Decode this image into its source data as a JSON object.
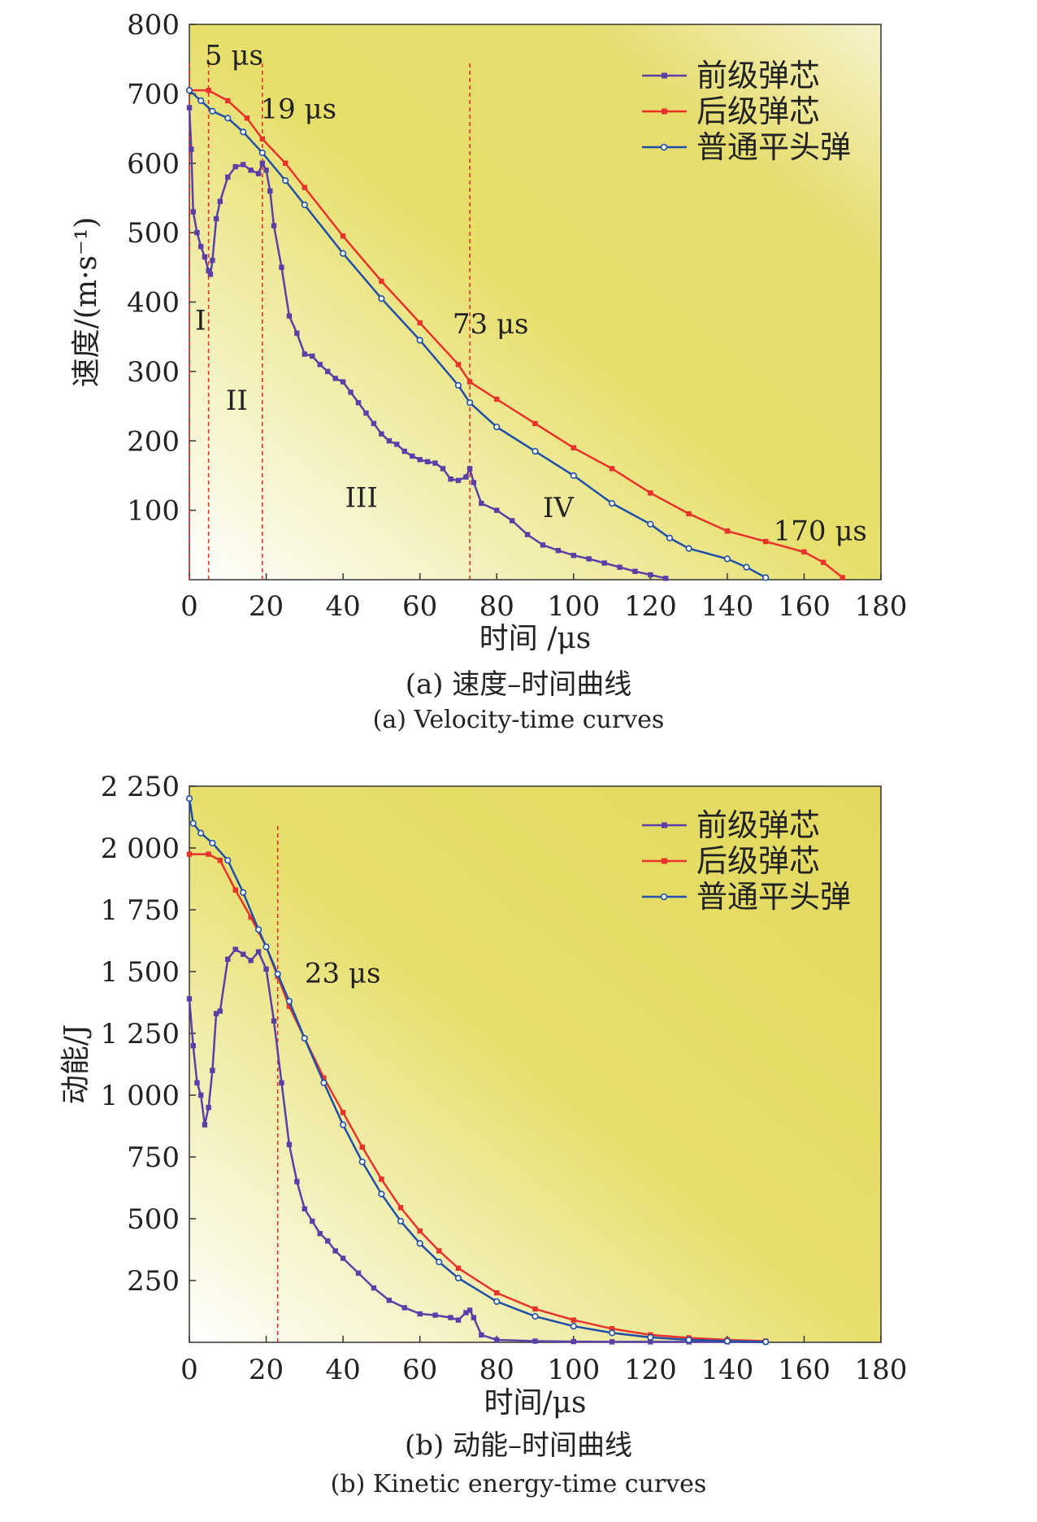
{
  "chart_data": [
    {
      "type": "line",
      "ylabel": "速度/(m·s⁻¹)",
      "xlabel": "时间 /μs",
      "xlim": [
        0,
        180
      ],
      "ylim": [
        0,
        800
      ],
      "x_ticks": [
        "0",
        "20",
        "40",
        "60",
        "80",
        "100",
        "120",
        "140",
        "160",
        "180"
      ],
      "y_ticks": [
        "100",
        "200",
        "300",
        "400",
        "500",
        "600",
        "700",
        "800"
      ],
      "legend_position": "top-right",
      "caption_zh": "(a) 速度–时间曲线",
      "caption_en": "(a) Velocity-time curves",
      "series": [
        {
          "name": "前级弹芯",
          "color": "#5b3fa6",
          "marker": "square",
          "x": [
            0,
            0.5,
            1,
            2,
            3,
            4,
            5,
            5.5,
            6,
            7,
            8,
            10,
            12,
            14,
            16,
            18,
            19,
            20,
            21,
            22,
            24,
            26,
            28,
            30,
            32,
            34,
            36,
            38,
            40,
            42,
            44,
            46,
            48,
            50,
            52,
            54,
            56,
            58,
            60,
            62,
            64,
            66,
            68,
            70,
            72,
            73,
            74,
            76,
            80,
            84,
            88,
            92,
            96,
            100,
            104,
            108,
            112,
            116,
            120,
            124
          ],
          "y": [
            680,
            620,
            530,
            500,
            480,
            465,
            445,
            440,
            460,
            520,
            545,
            580,
            595,
            598,
            590,
            585,
            600,
            590,
            560,
            510,
            450,
            380,
            355,
            325,
            322,
            310,
            300,
            290,
            285,
            270,
            255,
            240,
            225,
            210,
            200,
            195,
            185,
            178,
            173,
            170,
            168,
            160,
            145,
            143,
            148,
            160,
            140,
            110,
            100,
            85,
            65,
            50,
            42,
            35,
            30,
            24,
            18,
            12,
            7,
            2
          ]
        },
        {
          "name": "后级弹芯",
          "color": "#e8322a",
          "marker": "square",
          "x": [
            0,
            5,
            10,
            15,
            19,
            25,
            30,
            40,
            50,
            60,
            70,
            73,
            80,
            90,
            100,
            110,
            120,
            130,
            140,
            150,
            160,
            165,
            170
          ],
          "y": [
            705,
            705,
            690,
            665,
            635,
            600,
            565,
            495,
            430,
            370,
            310,
            285,
            260,
            225,
            190,
            160,
            125,
            95,
            70,
            55,
            40,
            25,
            3
          ]
        },
        {
          "name": "普通平头弹",
          "color": "#1f4fa8",
          "marker": "circle",
          "x": [
            0,
            3,
            6,
            10,
            14,
            19,
            25,
            30,
            40,
            50,
            60,
            70,
            73,
            80,
            90,
            100,
            110,
            120,
            125,
            130,
            140,
            145,
            150
          ],
          "y": [
            705,
            690,
            675,
            665,
            645,
            615,
            575,
            540,
            470,
            405,
            345,
            280,
            255,
            220,
            185,
            150,
            110,
            80,
            60,
            45,
            30,
            18,
            3
          ]
        }
      ],
      "vlines": [
        0,
        5,
        19,
        73
      ],
      "annotations": [
        {
          "text": "5 μs",
          "x": 4,
          "y": 742
        },
        {
          "text": "19 μs",
          "x": 18.5,
          "y": 665
        },
        {
          "text": "73 μs",
          "x": 68.5,
          "y": 355
        },
        {
          "text": "170 μs",
          "x": 152,
          "y": 57
        },
        {
          "text": "I",
          "x": 1.5,
          "y": 360
        },
        {
          "text": "II",
          "x": 9.5,
          "y": 245
        },
        {
          "text": "III",
          "x": 40.5,
          "y": 105
        },
        {
          "text": "IV",
          "x": 92,
          "y": 90
        }
      ]
    },
    {
      "type": "line",
      "ylabel": "动能/J",
      "xlabel": "时间/μs",
      "xlim": [
        0,
        180
      ],
      "ylim": [
        0,
        2250
      ],
      "x_ticks": [
        "0",
        "20",
        "40",
        "60",
        "80",
        "100",
        "120",
        "140",
        "160",
        "180"
      ],
      "y_ticks": [
        "250",
        "500",
        "750",
        "1 000",
        "1 250",
        "1 500",
        "1 750",
        "2 000",
        "2 250"
      ],
      "legend_position": "top-right",
      "caption_zh": "(b) 动能–时间曲线",
      "caption_en": "(b) Kinetic energy-time curves",
      "series": [
        {
          "name": "前级弹芯",
          "color": "#5b3fa6",
          "marker": "square",
          "x": [
            0,
            1,
            2,
            3,
            4,
            5,
            6,
            7,
            8,
            10,
            12,
            14,
            16,
            18,
            20,
            22,
            24,
            26,
            28,
            30,
            32,
            34,
            36,
            38,
            40,
            44,
            48,
            52,
            56,
            60,
            64,
            68,
            70,
            72,
            73,
            74,
            76,
            80,
            90,
            100,
            110,
            120,
            130,
            140,
            150
          ],
          "y": [
            1390,
            1200,
            1050,
            1000,
            880,
            950,
            1100,
            1330,
            1340,
            1550,
            1590,
            1570,
            1545,
            1580,
            1510,
            1300,
            1050,
            800,
            650,
            540,
            490,
            440,
            410,
            370,
            340,
            280,
            220,
            170,
            140,
            115,
            110,
            100,
            90,
            120,
            130,
            100,
            30,
            10,
            5,
            3,
            2,
            2,
            2,
            2,
            1
          ]
        },
        {
          "name": "后级弹芯",
          "color": "#e8322a",
          "marker": "square",
          "x": [
            0,
            5,
            8,
            12,
            16,
            20,
            23,
            26,
            30,
            35,
            40,
            45,
            50,
            55,
            60,
            65,
            70,
            80,
            90,
            100,
            110,
            120,
            130,
            140,
            150
          ],
          "y": [
            1975,
            1975,
            1950,
            1830,
            1720,
            1600,
            1480,
            1360,
            1230,
            1070,
            930,
            790,
            660,
            545,
            450,
            370,
            300,
            200,
            135,
            90,
            55,
            30,
            18,
            10,
            5
          ]
        },
        {
          "name": "普通平头弹",
          "color": "#1f4fa8",
          "marker": "circle",
          "x": [
            0,
            1,
            3,
            6,
            10,
            14,
            18,
            20,
            23,
            26,
            30,
            35,
            40,
            45,
            50,
            55,
            60,
            65,
            70,
            80,
            90,
            100,
            110,
            120,
            130,
            140,
            150
          ],
          "y": [
            2200,
            2100,
            2060,
            2020,
            1950,
            1820,
            1670,
            1600,
            1490,
            1380,
            1230,
            1050,
            880,
            730,
            600,
            490,
            400,
            325,
            260,
            165,
            105,
            65,
            38,
            20,
            10,
            5,
            2
          ]
        }
      ],
      "vlines": [
        23
      ],
      "annotations": [
        {
          "text": "23 μs",
          "x": 30,
          "y": 1455
        }
      ]
    }
  ]
}
